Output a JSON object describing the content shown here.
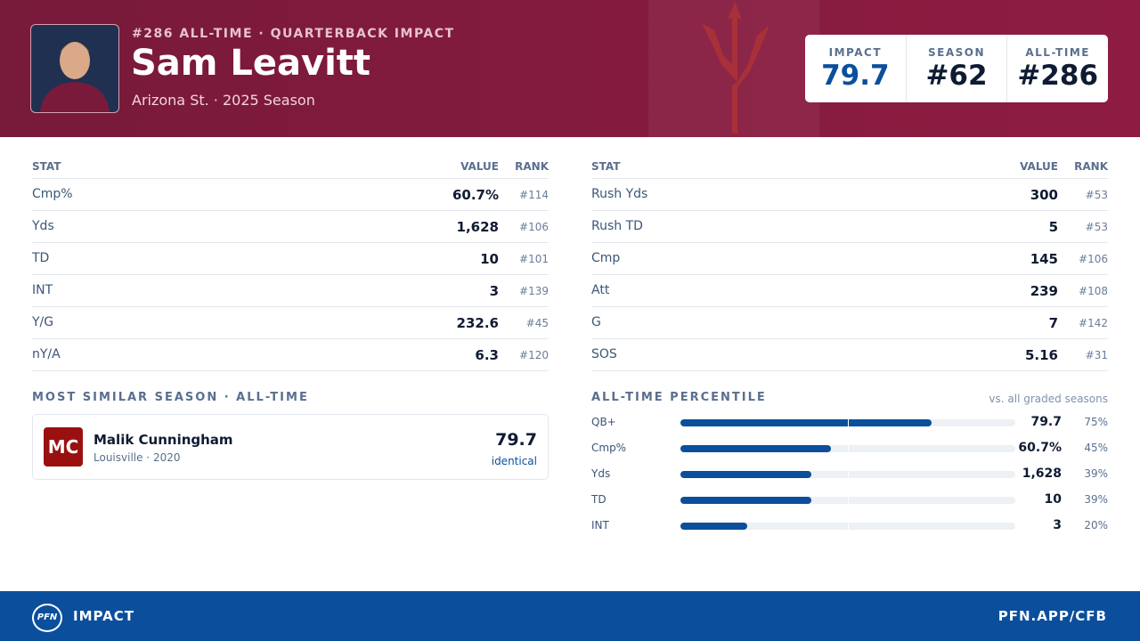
{
  "header": {
    "kicker": "#286 ALL-TIME · QUARTERBACK IMPACT",
    "name": "Sam Leavitt",
    "subtitle": "Arizona St. · 2025 Season",
    "scores": [
      {
        "label": "IMPACT",
        "value": "79.7"
      },
      {
        "label": "SEASON",
        "value": "#62"
      },
      {
        "label": "ALL-TIME",
        "value": "#286"
      }
    ]
  },
  "tables": [
    {
      "columns": [
        "STAT",
        "VALUE",
        "RANK"
      ],
      "rows": [
        [
          "Cmp%",
          "60.7%",
          "#114"
        ],
        [
          "Yds",
          "1,628",
          "#106"
        ],
        [
          "TD",
          "10",
          "#101"
        ],
        [
          "INT",
          "3",
          "#139"
        ],
        [
          "Y/G",
          "232.6",
          "#45"
        ],
        [
          "nY/A",
          "6.3",
          "#120"
        ]
      ]
    },
    {
      "columns": [
        "STAT",
        "VALUE",
        "RANK"
      ],
      "rows": [
        [
          "Rush Yds",
          "300",
          "#53"
        ],
        [
          "Rush TD",
          "5",
          "#53"
        ],
        [
          "Cmp",
          "145",
          "#106"
        ],
        [
          "Att",
          "239",
          "#108"
        ],
        [
          "G",
          "7",
          "#142"
        ],
        [
          "SOS",
          "5.16",
          "#31"
        ]
      ]
    }
  ],
  "similar": {
    "title": "MOST SIMILAR SEASON · ALL-TIME",
    "initials": "MC",
    "name": "Malik Cunningham",
    "meta": "Louisville · 2020",
    "score": "79.7",
    "note": "identical"
  },
  "percentile": {
    "title": "ALL-TIME PERCENTILE",
    "note": "vs. all graded seasons",
    "rows": [
      {
        "label": "QB+",
        "value": "79.7",
        "pct": 75,
        "pct_label": "75%"
      },
      {
        "label": "Cmp%",
        "value": "60.7%",
        "pct": 45,
        "pct_label": "45%"
      },
      {
        "label": "Yds",
        "value": "1,628",
        "pct": 39,
        "pct_label": "39%"
      },
      {
        "label": "TD",
        "value": "10",
        "pct": 39,
        "pct_label": "39%"
      },
      {
        "label": "INT",
        "value": "3",
        "pct": 20,
        "pct_label": "20%"
      }
    ]
  },
  "footer": {
    "logo": "PFN",
    "brand": "IMPACT",
    "url": "PFN.APP/CFB"
  }
}
